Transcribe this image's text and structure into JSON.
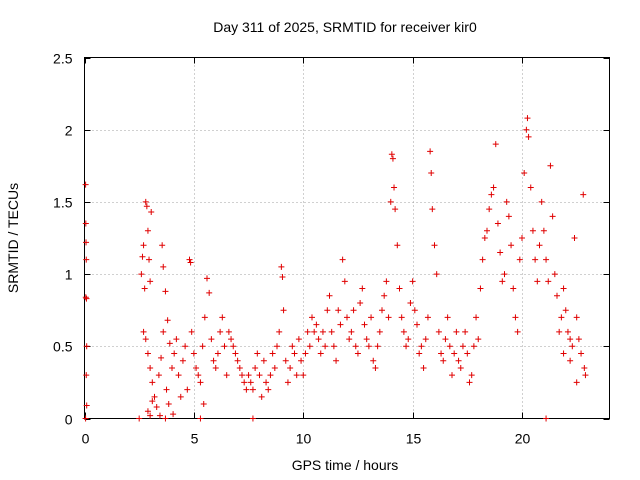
{
  "chart_data": {
    "type": "scatter",
    "title": "Day 311 of 2025, SRMTID for receiver kir0",
    "xlabel": "GPS time / hours",
    "ylabel": "SRMTID / TECUs",
    "xlim": [
      0,
      24
    ],
    "ylim": [
      0,
      2.5
    ],
    "x_ticks": [
      0,
      5,
      10,
      15,
      20
    ],
    "x_tick_labels": [
      "0",
      "5",
      "10",
      "15",
      "20"
    ],
    "y_ticks": [
      0,
      0.5,
      1,
      1.5,
      2,
      2.5
    ],
    "y_tick_labels": [
      "0",
      "0.5",
      "1",
      "1.5",
      "2",
      "2.5"
    ],
    "grid": true,
    "marker": "plus",
    "color": "#e00000",
    "series": [
      {
        "name": "SRMTID",
        "points": [
          [
            0.05,
            1.62
          ],
          [
            0.06,
            1.35
          ],
          [
            0.07,
            1.22
          ],
          [
            0.08,
            1.1
          ],
          [
            0.06,
            0.84
          ],
          [
            0.09,
            0.83
          ],
          [
            0.1,
            0.5
          ],
          [
            0.08,
            0.3
          ],
          [
            0.1,
            0.09
          ],
          [
            0.05,
            0.0
          ],
          [
            2.6,
            1.0
          ],
          [
            2.65,
            1.12
          ],
          [
            2.7,
            1.2
          ],
          [
            2.75,
            0.9
          ],
          [
            2.8,
            1.5
          ],
          [
            2.85,
            1.47
          ],
          [
            2.9,
            1.3
          ],
          [
            2.95,
            1.1
          ],
          [
            3.0,
            0.95
          ],
          [
            3.05,
            1.43
          ],
          [
            2.7,
            0.6
          ],
          [
            2.8,
            0.55
          ],
          [
            2.9,
            0.45
          ],
          [
            3.0,
            0.35
          ],
          [
            3.1,
            0.25
          ],
          [
            3.2,
            0.15
          ],
          [
            2.9,
            0.05
          ],
          [
            3.0,
            0.02
          ],
          [
            3.3,
            0.08
          ],
          [
            3.1,
            0.12
          ],
          [
            3.4,
            0.3
          ],
          [
            3.5,
            0.42
          ],
          [
            3.6,
            0.6
          ],
          [
            3.55,
            1.2
          ],
          [
            3.6,
            1.05
          ],
          [
            3.7,
            0.88
          ],
          [
            3.8,
            0.68
          ],
          [
            3.9,
            0.52
          ],
          [
            3.75,
            0.2
          ],
          [
            3.85,
            0.1
          ],
          [
            4.0,
            0.35
          ],
          [
            4.1,
            0.45
          ],
          [
            4.2,
            0.55
          ],
          [
            4.3,
            0.3
          ],
          [
            4.4,
            0.15
          ],
          [
            4.5,
            0.4
          ],
          [
            4.6,
            0.5
          ],
          [
            4.7,
            0.2
          ],
          [
            4.8,
            1.1
          ],
          [
            4.85,
            1.08
          ],
          [
            4.9,
            0.6
          ],
          [
            5.0,
            0.45
          ],
          [
            5.1,
            0.35
          ],
          [
            5.2,
            0.3
          ],
          [
            5.3,
            0.25
          ],
          [
            5.4,
            0.5
          ],
          [
            5.5,
            0.7
          ],
          [
            5.6,
            0.97
          ],
          [
            5.7,
            0.87
          ],
          [
            5.8,
            0.55
          ],
          [
            5.9,
            0.4
          ],
          [
            6.0,
            0.35
          ],
          [
            6.1,
            0.45
          ],
          [
            6.2,
            0.6
          ],
          [
            6.3,
            0.7
          ],
          [
            6.4,
            0.5
          ],
          [
            6.5,
            0.3
          ],
          [
            6.6,
            0.6
          ],
          [
            6.7,
            0.55
          ],
          [
            6.8,
            0.5
          ],
          [
            6.9,
            0.45
          ],
          [
            7.0,
            0.4
          ],
          [
            7.1,
            0.35
          ],
          [
            7.2,
            0.3
          ],
          [
            7.3,
            0.25
          ],
          [
            7.4,
            0.2
          ],
          [
            7.5,
            0.3
          ],
          [
            7.6,
            0.25
          ],
          [
            7.7,
            0.2
          ],
          [
            7.8,
            0.35
          ],
          [
            7.9,
            0.45
          ],
          [
            8.0,
            0.3
          ],
          [
            8.1,
            0.15
          ],
          [
            8.2,
            0.4
          ],
          [
            8.3,
            0.25
          ],
          [
            8.4,
            0.2
          ],
          [
            8.5,
            0.3
          ],
          [
            8.6,
            0.45
          ],
          [
            8.7,
            0.35
          ],
          [
            8.8,
            0.5
          ],
          [
            8.9,
            0.6
          ],
          [
            9.0,
            1.05
          ],
          [
            9.05,
            0.98
          ],
          [
            9.1,
            0.75
          ],
          [
            9.2,
            0.4
          ],
          [
            9.3,
            0.25
          ],
          [
            9.4,
            0.35
          ],
          [
            9.5,
            0.5
          ],
          [
            9.6,
            0.45
          ],
          [
            9.7,
            0.3
          ],
          [
            9.8,
            0.55
          ],
          [
            9.9,
            0.4
          ],
          [
            10.0,
            0.3
          ],
          [
            10.1,
            0.45
          ],
          [
            10.2,
            0.6
          ],
          [
            10.3,
            0.5
          ],
          [
            10.4,
            0.7
          ],
          [
            10.5,
            0.6
          ],
          [
            10.6,
            0.65
          ],
          [
            10.7,
            0.55
          ],
          [
            10.8,
            0.45
          ],
          [
            10.9,
            0.6
          ],
          [
            11.0,
            0.5
          ],
          [
            11.1,
            0.75
          ],
          [
            11.2,
            0.85
          ],
          [
            11.3,
            0.6
          ],
          [
            11.4,
            0.5
          ],
          [
            11.5,
            0.4
          ],
          [
            11.6,
            0.75
          ],
          [
            11.7,
            0.65
          ],
          [
            11.8,
            1.1
          ],
          [
            11.9,
            0.95
          ],
          [
            12.0,
            0.7
          ],
          [
            12.1,
            0.55
          ],
          [
            12.2,
            0.6
          ],
          [
            12.3,
            0.75
          ],
          [
            12.4,
            0.5
          ],
          [
            12.5,
            0.45
          ],
          [
            12.6,
            0.8
          ],
          [
            12.7,
            0.9
          ],
          [
            12.8,
            0.65
          ],
          [
            12.9,
            0.55
          ],
          [
            13.0,
            0.5
          ],
          [
            13.1,
            0.7
          ],
          [
            13.2,
            0.4
          ],
          [
            13.3,
            0.35
          ],
          [
            13.4,
            0.5
          ],
          [
            13.5,
            0.6
          ],
          [
            13.6,
            0.75
          ],
          [
            13.7,
            0.85
          ],
          [
            13.8,
            0.95
          ],
          [
            13.9,
            0.7
          ],
          [
            14.0,
            1.5
          ],
          [
            14.05,
            1.83
          ],
          [
            14.1,
            1.8
          ],
          [
            14.15,
            1.6
          ],
          [
            14.2,
            1.45
          ],
          [
            14.3,
            1.2
          ],
          [
            14.4,
            0.9
          ],
          [
            14.5,
            0.7
          ],
          [
            14.6,
            0.6
          ],
          [
            14.7,
            0.5
          ],
          [
            14.8,
            0.55
          ],
          [
            14.9,
            0.8
          ],
          [
            15.0,
            0.95
          ],
          [
            15.1,
            0.75
          ],
          [
            15.2,
            0.65
          ],
          [
            15.3,
            0.45
          ],
          [
            15.4,
            0.5
          ],
          [
            15.5,
            0.35
          ],
          [
            15.6,
            0.55
          ],
          [
            15.7,
            0.7
          ],
          [
            15.8,
            1.85
          ],
          [
            15.85,
            1.7
          ],
          [
            15.9,
            1.45
          ],
          [
            16.0,
            1.2
          ],
          [
            16.1,
            1.0
          ],
          [
            16.2,
            0.6
          ],
          [
            16.3,
            0.45
          ],
          [
            16.4,
            0.4
          ],
          [
            16.5,
            0.55
          ],
          [
            16.6,
            0.7
          ],
          [
            16.7,
            0.5
          ],
          [
            16.8,
            0.3
          ],
          [
            16.9,
            0.45
          ],
          [
            17.0,
            0.6
          ],
          [
            17.1,
            0.4
          ],
          [
            17.2,
            0.35
          ],
          [
            17.3,
            0.5
          ],
          [
            17.4,
            0.6
          ],
          [
            17.5,
            0.45
          ],
          [
            17.6,
            0.25
          ],
          [
            17.7,
            0.3
          ],
          [
            17.8,
            0.5
          ],
          [
            17.9,
            0.7
          ],
          [
            18.0,
            0.55
          ],
          [
            18.1,
            0.9
          ],
          [
            18.2,
            1.1
          ],
          [
            18.3,
            1.25
          ],
          [
            18.4,
            1.3
          ],
          [
            18.5,
            1.45
          ],
          [
            18.6,
            1.55
          ],
          [
            18.7,
            1.6
          ],
          [
            18.8,
            1.9
          ],
          [
            18.9,
            1.35
          ],
          [
            19.0,
            1.15
          ],
          [
            19.1,
            0.95
          ],
          [
            19.2,
            1.0
          ],
          [
            19.3,
            1.5
          ],
          [
            19.4,
            1.4
          ],
          [
            19.5,
            1.2
          ],
          [
            19.6,
            0.9
          ],
          [
            19.7,
            0.7
          ],
          [
            19.8,
            0.6
          ],
          [
            19.9,
            1.1
          ],
          [
            20.0,
            1.25
          ],
          [
            20.1,
            1.7
          ],
          [
            20.2,
            2.0
          ],
          [
            20.25,
            2.08
          ],
          [
            20.3,
            1.95
          ],
          [
            20.4,
            1.6
          ],
          [
            20.5,
            1.3
          ],
          [
            20.6,
            1.1
          ],
          [
            20.7,
            0.95
          ],
          [
            20.8,
            1.2
          ],
          [
            20.9,
            1.5
          ],
          [
            21.0,
            1.3
          ],
          [
            21.1,
            1.1
          ],
          [
            21.2,
            0.95
          ],
          [
            21.3,
            1.75
          ],
          [
            21.4,
            1.4
          ],
          [
            21.5,
            1.0
          ],
          [
            21.6,
            0.85
          ],
          [
            21.7,
            0.6
          ],
          [
            21.8,
            0.7
          ],
          [
            21.9,
            0.9
          ],
          [
            22.0,
            0.75
          ],
          [
            22.1,
            0.6
          ],
          [
            22.2,
            0.55
          ],
          [
            22.3,
            0.5
          ],
          [
            22.4,
            1.25
          ],
          [
            22.5,
            0.7
          ],
          [
            22.6,
            0.55
          ],
          [
            22.7,
            0.45
          ],
          [
            22.8,
            1.55
          ],
          [
            22.85,
            0.35
          ],
          [
            22.9,
            0.3
          ],
          [
            22.5,
            0.25
          ],
          [
            22.2,
            0.4
          ],
          [
            21.9,
            0.45
          ],
          [
            2.5,
            0.0
          ],
          [
            3.7,
            0.0
          ],
          [
            5.3,
            0.0
          ],
          [
            7.7,
            0.0
          ],
          [
            21.1,
            0.0
          ],
          [
            3.45,
            0.02
          ],
          [
            4.05,
            0.03
          ],
          [
            5.45,
            0.1
          ]
        ]
      }
    ]
  }
}
